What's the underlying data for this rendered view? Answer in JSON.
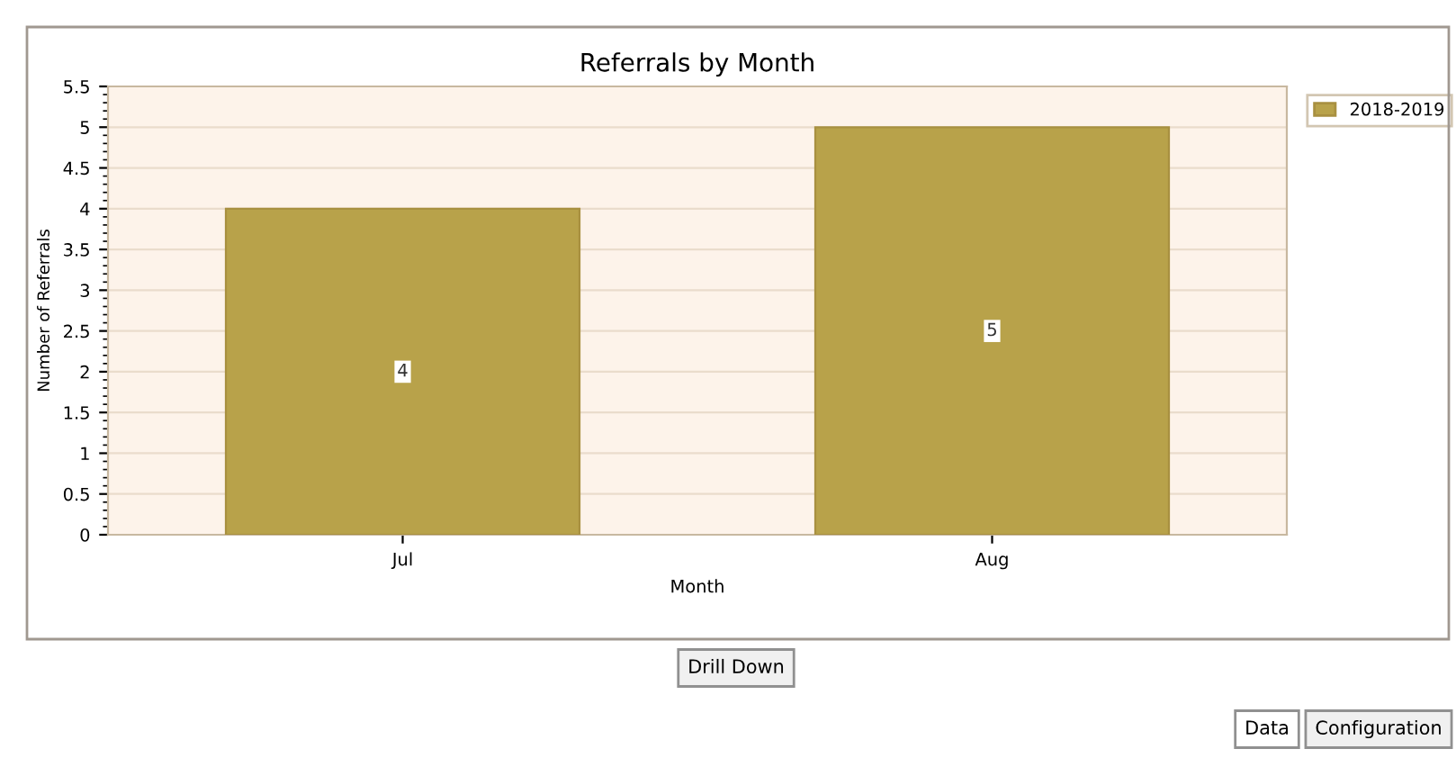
{
  "chart_data": {
    "type": "bar",
    "title": "Referrals by Month",
    "xlabel": "Month",
    "ylabel": "Number of Referrals",
    "categories": [
      "Jul",
      "Aug"
    ],
    "series": [
      {
        "name": "2018-2019",
        "color": "#b8a24a",
        "values": [
          4,
          5
        ]
      }
    ],
    "ylim": [
      0,
      5.5
    ],
    "yticks": [
      0,
      0.5,
      1,
      1.5,
      2,
      2.5,
      3,
      3.5,
      4,
      4.5,
      5,
      5.5
    ],
    "grid": "y",
    "legend": "top right",
    "data_labels": true,
    "annotations": [
      "Drill Down",
      "Data",
      "Configuration"
    ]
  }
}
